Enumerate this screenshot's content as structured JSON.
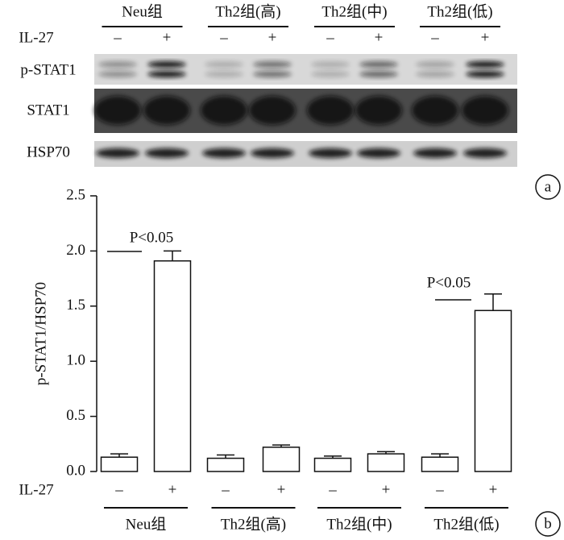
{
  "blot": {
    "groups": [
      "Neu组",
      "Th2组(高)",
      "Th2组(中)",
      "Th2组(低)"
    ],
    "treatment_label": "IL-27",
    "treatments": [
      "–",
      "+"
    ],
    "rows": [
      "p-STAT1",
      "STAT1",
      "HSP70"
    ],
    "panel_label": "a"
  },
  "chart_data": {
    "type": "bar",
    "panel_label": "b",
    "y_label": "p-STAT1/HSP70",
    "x_label": "IL-27",
    "groups": [
      "Neu组",
      "Th2组(高)",
      "Th2组(中)",
      "Th2组(低)"
    ],
    "categories": [
      "–",
      "+",
      "–",
      "+",
      "–",
      "+",
      "–",
      "+"
    ],
    "values": [
      0.13,
      1.91,
      0.12,
      0.22,
      0.12,
      0.16,
      0.13,
      1.46
    ],
    "errors": [
      0.03,
      0.09,
      0.03,
      0.02,
      0.02,
      0.02,
      0.03,
      0.15
    ],
    "color": "#ffffff",
    "ylim": [
      0,
      2.5
    ],
    "yticks": [
      {
        "value": 0,
        "label": "0.0"
      },
      {
        "value": 0.5,
        "label": "0.5"
      },
      {
        "value": 1,
        "label": "1.0"
      },
      {
        "value": 1.5,
        "label": "1.5"
      },
      {
        "value": 2,
        "label": "2.0"
      },
      2.5
    ],
    "annotations": [
      "P<0.05",
      "P<0.05"
    ]
  }
}
